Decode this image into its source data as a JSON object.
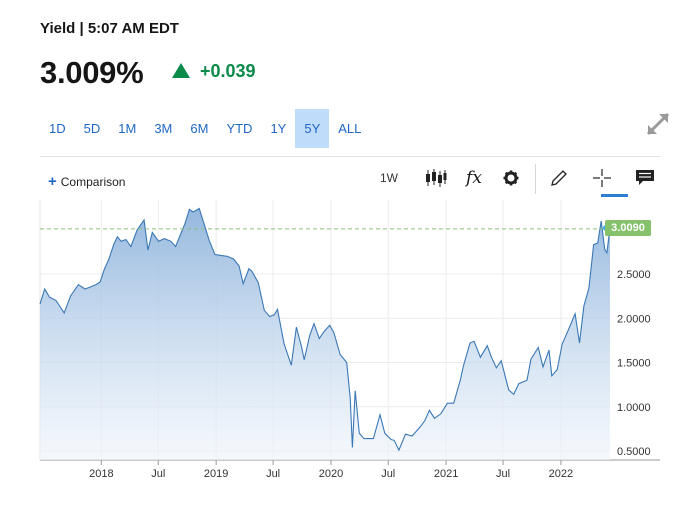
{
  "header": {
    "title": "Yield | 5:07 AM EDT",
    "price": "3.009%",
    "change": "+0.039"
  },
  "ranges": [
    "1D",
    "5D",
    "1M",
    "3M",
    "6M",
    "YTD",
    "1Y",
    "5Y",
    "ALL"
  ],
  "active_range": "5Y",
  "toolbar": {
    "comparison_label": "Comparison",
    "interval_label": "1W",
    "fx_label": "fx"
  },
  "colors": {
    "up": "#0b8a4a",
    "accent": "#1f67c4",
    "line": "#3a78b5",
    "active_range_bg": "#bfdcfa",
    "last_label_bg": "#86c16b"
  },
  "chart_data": {
    "type": "area",
    "last_value_label": "3.0090",
    "x_ticks": [
      "2018",
      "Jul",
      "2019",
      "Jul",
      "2020",
      "Jul",
      "2021",
      "Jul",
      "2022"
    ],
    "y_ticks": [
      "2.5000",
      "2.0000",
      "1.5000",
      "1.0000",
      "0.5000"
    ],
    "ylim": [
      0.45,
      3.3
    ],
    "grid": true,
    "series": [
      {
        "values": [
          [
            "2017-06-20",
            2.16
          ],
          [
            "2017-07-05",
            2.33
          ],
          [
            "2017-07-20",
            2.24
          ],
          [
            "2017-08-10",
            2.2
          ],
          [
            "2017-09-05",
            2.06
          ],
          [
            "2017-09-25",
            2.25
          ],
          [
            "2017-10-20",
            2.38
          ],
          [
            "2017-11-10",
            2.33
          ],
          [
            "2017-11-25",
            2.35
          ],
          [
            "2017-12-15",
            2.38
          ],
          [
            "2017-12-28",
            2.41
          ],
          [
            "2018-01-10",
            2.55
          ],
          [
            "2018-01-25",
            2.67
          ],
          [
            "2018-02-10",
            2.84
          ],
          [
            "2018-02-21",
            2.92
          ],
          [
            "2018-03-05",
            2.87
          ],
          [
            "2018-03-20",
            2.89
          ],
          [
            "2018-04-05",
            2.81
          ],
          [
            "2018-04-25",
            3.0
          ],
          [
            "2018-05-17",
            3.11
          ],
          [
            "2018-05-29",
            2.77
          ],
          [
            "2018-06-12",
            2.97
          ],
          [
            "2018-07-02",
            2.87
          ],
          [
            "2018-07-20",
            2.9
          ],
          [
            "2018-08-10",
            2.87
          ],
          [
            "2018-08-25",
            2.81
          ],
          [
            "2018-09-10",
            2.95
          ],
          [
            "2018-09-25",
            3.08
          ],
          [
            "2018-10-08",
            3.23
          ],
          [
            "2018-10-20",
            3.2
          ],
          [
            "2018-11-08",
            3.24
          ],
          [
            "2018-11-25",
            3.05
          ],
          [
            "2018-12-10",
            2.88
          ],
          [
            "2018-12-28",
            2.72
          ],
          [
            "2019-01-15",
            2.71
          ],
          [
            "2019-02-05",
            2.7
          ],
          [
            "2019-02-25",
            2.67
          ],
          [
            "2019-03-15",
            2.59
          ],
          [
            "2019-03-28",
            2.39
          ],
          [
            "2019-04-15",
            2.56
          ],
          [
            "2019-04-25",
            2.53
          ],
          [
            "2019-05-15",
            2.4
          ],
          [
            "2019-06-03",
            2.09
          ],
          [
            "2019-06-20",
            2.02
          ],
          [
            "2019-07-05",
            2.04
          ],
          [
            "2019-07-15",
            2.1
          ],
          [
            "2019-08-05",
            1.71
          ],
          [
            "2019-08-28",
            1.47
          ],
          [
            "2019-09-13",
            1.9
          ],
          [
            "2019-09-30",
            1.67
          ],
          [
            "2019-10-08",
            1.53
          ],
          [
            "2019-10-25",
            1.8
          ],
          [
            "2019-11-08",
            1.94
          ],
          [
            "2019-11-25",
            1.77
          ],
          [
            "2019-12-10",
            1.85
          ],
          [
            "2019-12-28",
            1.92
          ],
          [
            "2020-01-10",
            1.84
          ],
          [
            "2020-01-30",
            1.59
          ],
          [
            "2020-02-20",
            1.5
          ],
          [
            "2020-03-02",
            1.1
          ],
          [
            "2020-03-09",
            0.54
          ],
          [
            "2020-03-18",
            1.18
          ],
          [
            "2020-03-31",
            0.7
          ],
          [
            "2020-04-15",
            0.64
          ],
          [
            "2020-04-30",
            0.64
          ],
          [
            "2020-05-15",
            0.64
          ],
          [
            "2020-06-05",
            0.91
          ],
          [
            "2020-06-20",
            0.7
          ],
          [
            "2020-07-10",
            0.63
          ],
          [
            "2020-07-20",
            0.62
          ],
          [
            "2020-08-04",
            0.51
          ],
          [
            "2020-08-25",
            0.69
          ],
          [
            "2020-09-15",
            0.67
          ],
          [
            "2020-10-10",
            0.77
          ],
          [
            "2020-10-25",
            0.84
          ],
          [
            "2020-11-09",
            0.96
          ],
          [
            "2020-11-25",
            0.87
          ],
          [
            "2020-12-15",
            0.92
          ],
          [
            "2021-01-05",
            1.04
          ],
          [
            "2021-01-25",
            1.04
          ],
          [
            "2021-02-15",
            1.3
          ],
          [
            "2021-02-25",
            1.46
          ],
          [
            "2021-03-18",
            1.72
          ],
          [
            "2021-03-31",
            1.74
          ],
          [
            "2021-04-20",
            1.56
          ],
          [
            "2021-05-12",
            1.69
          ],
          [
            "2021-05-25",
            1.56
          ],
          [
            "2021-06-10",
            1.44
          ],
          [
            "2021-06-25",
            1.52
          ],
          [
            "2021-07-19",
            1.19
          ],
          [
            "2021-08-04",
            1.14
          ],
          [
            "2021-08-20",
            1.26
          ],
          [
            "2021-09-15",
            1.3
          ],
          [
            "2021-09-28",
            1.54
          ],
          [
            "2021-10-21",
            1.67
          ],
          [
            "2021-11-05",
            1.45
          ],
          [
            "2021-11-24",
            1.64
          ],
          [
            "2021-12-03",
            1.35
          ],
          [
            "2021-12-20",
            1.42
          ],
          [
            "2022-01-05",
            1.71
          ],
          [
            "2022-01-20",
            1.83
          ],
          [
            "2022-02-15",
            2.05
          ],
          [
            "2022-03-01",
            1.72
          ],
          [
            "2022-03-15",
            2.14
          ],
          [
            "2022-03-31",
            2.34
          ],
          [
            "2022-04-15",
            2.83
          ],
          [
            "2022-04-28",
            2.85
          ],
          [
            "2022-05-09",
            3.1
          ],
          [
            "2022-05-20",
            2.78
          ],
          [
            "2022-05-27",
            2.74
          ],
          [
            "2022-06-03",
            2.94
          ],
          [
            "2022-06-06",
            3.01
          ]
        ]
      }
    ]
  }
}
